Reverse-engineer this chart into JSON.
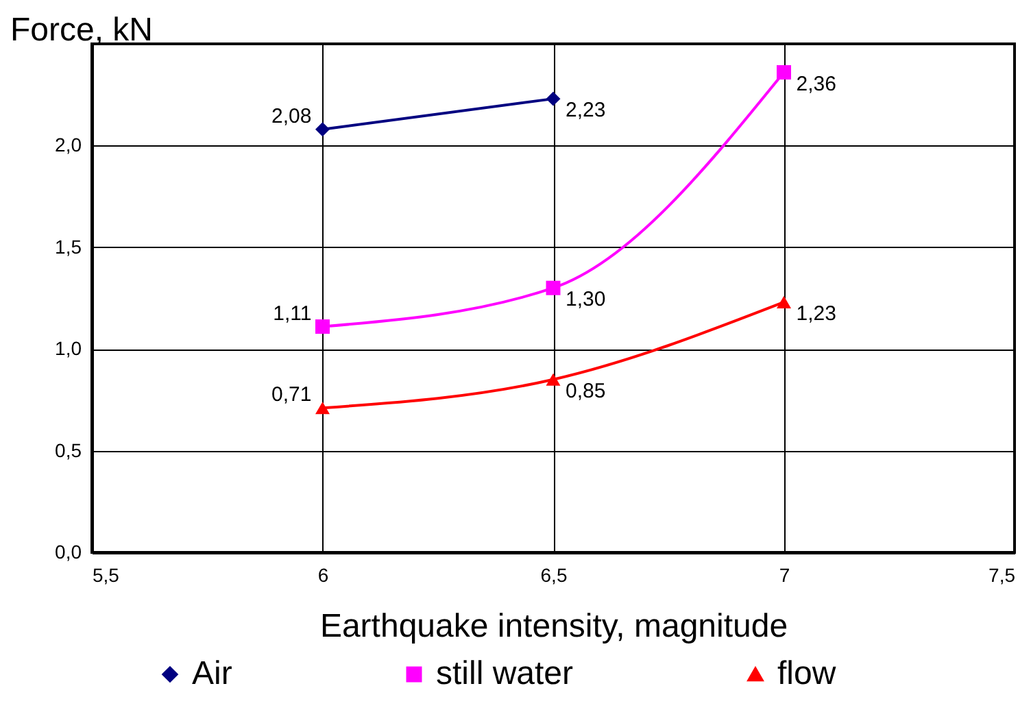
{
  "chart_data": {
    "type": "line",
    "xlabel": "Earthquake intensity, magnitude",
    "ylabel": "Force, kN",
    "xlim": [
      5.5,
      7.5
    ],
    "xticks": [
      {
        "value": 5.5,
        "label": "5,5"
      },
      6,
      {
        "value": 6.5,
        "label": "6,5"
      },
      7,
      {
        "value": 7.5,
        "label": "7,5"
      }
    ],
    "ylim": [
      0,
      2.5
    ],
    "yticks": [
      {
        "value": 0,
        "label": "0,0"
      },
      {
        "value": 0.5,
        "label": "0,5"
      },
      {
        "value": 1.0,
        "label": "1,0"
      },
      {
        "value": 1.5,
        "label": "1,5"
      },
      {
        "value": 2.0,
        "label": "2,0"
      },
      {
        "value": 2.5,
        "label": null
      }
    ],
    "grid": true,
    "legend": "bottom",
    "line_style": "solid",
    "series": [
      {
        "name": "Air",
        "color": "#000080",
        "marker": "diamond",
        "x": [
          6,
          6.5
        ],
        "values": [
          2.08,
          2.23
        ],
        "value_labels": [
          "2,08",
          "2,23"
        ]
      },
      {
        "name": "still water",
        "color": "#ff00ff",
        "marker": "square",
        "x": [
          6,
          6.5,
          7
        ],
        "values": [
          1.11,
          1.3,
          2.36
        ],
        "value_labels": [
          "1,11",
          "1,30",
          "2,36"
        ]
      },
      {
        "name": "flow",
        "color": "#ff0000",
        "marker": "triangle",
        "x": [
          6,
          6.5,
          7
        ],
        "values": [
          0.71,
          0.85,
          1.23
        ],
        "value_labels": [
          "0,71",
          "0,85",
          "1,23"
        ]
      }
    ]
  }
}
